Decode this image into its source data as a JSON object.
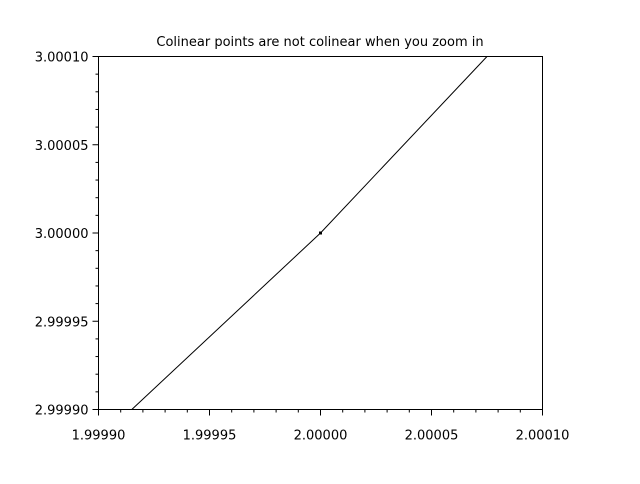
{
  "chart_data": {
    "type": "line",
    "title": "Colinear points are not colinear when you zoom in",
    "xlabel": "",
    "ylabel": "",
    "xlim": [
      1.9999,
      2.0001
    ],
    "ylim": [
      2.9999,
      3.0001
    ],
    "grid": false,
    "x_ticks": [
      "1.99990",
      "1.99995",
      "2.00000",
      "2.00005",
      "2.00010"
    ],
    "y_ticks": [
      "2.99990",
      "2.99995",
      "3.00000",
      "3.00005",
      "3.00010"
    ],
    "series": [
      {
        "x": [
          1.999915,
          2.0,
          2.000075
        ],
        "y": [
          2.9999,
          3.0,
          3.0001
        ],
        "color": "#000000"
      }
    ],
    "points": [
      {
        "x": 2.0,
        "y": 3.0,
        "color": "#000000"
      }
    ]
  }
}
